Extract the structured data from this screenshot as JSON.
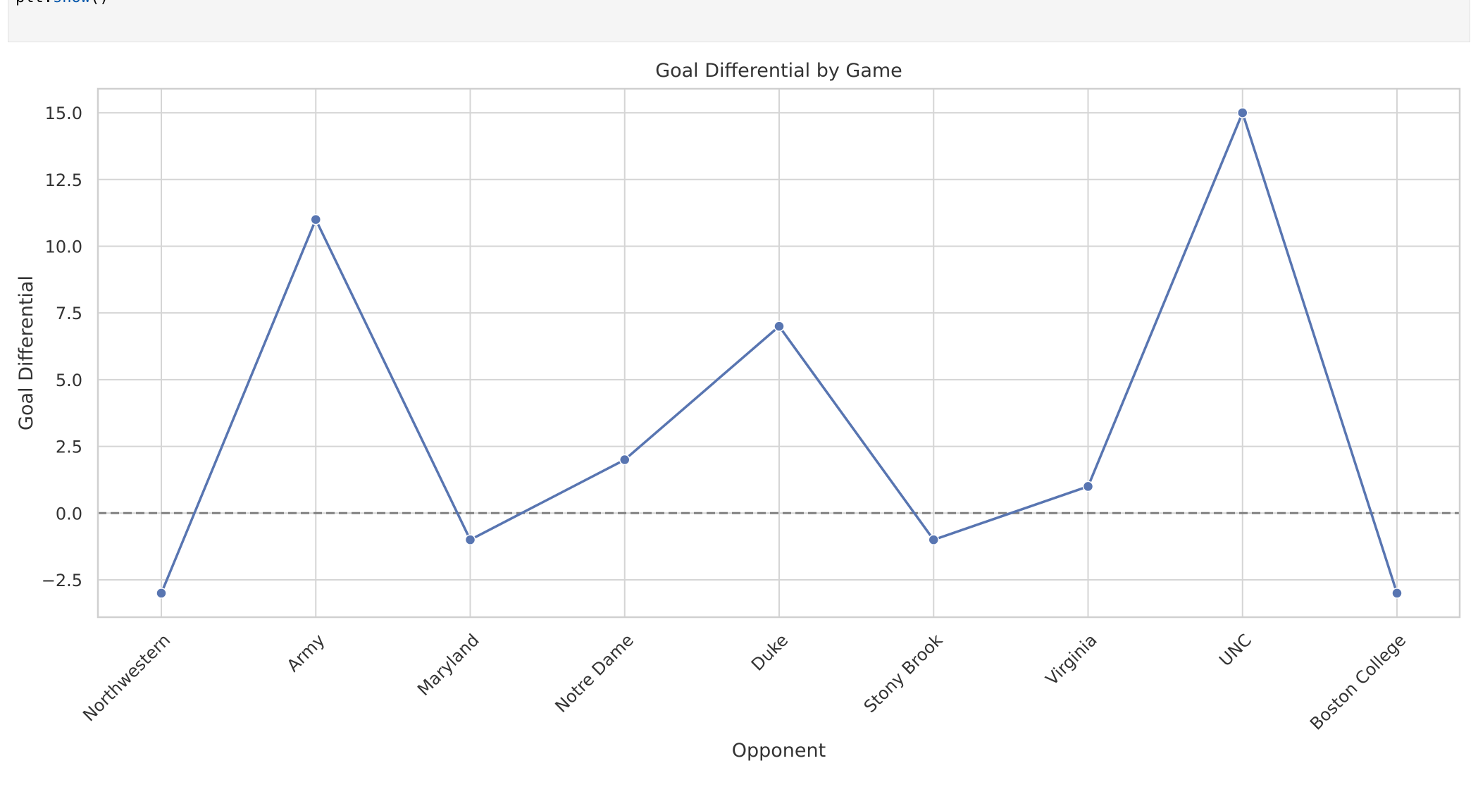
{
  "code_cell": {
    "prefix": "plt.",
    "fn": "show",
    "suffix": "()"
  },
  "chart_data": {
    "type": "line",
    "title": "Goal Differential by Game",
    "xlabel": "Opponent",
    "ylabel": "Goal Differential",
    "categories": [
      "Northwestern",
      "Army",
      "Maryland",
      "Notre Dame",
      "Duke",
      "Stony Brook",
      "Virginia",
      "UNC",
      "Boston College"
    ],
    "series": [
      {
        "values": [
          -3,
          11,
          -1,
          2,
          7,
          -1,
          1,
          15,
          -3
        ],
        "color": "#5875b1",
        "marker": "circle"
      }
    ],
    "ylim": [
      -3.9,
      15.9
    ],
    "yticks": [
      -2.5,
      0.0,
      2.5,
      5.0,
      7.5,
      10.0,
      12.5,
      15.0
    ],
    "ytick_labels": [
      "−2.5",
      "0.0",
      "2.5",
      "5.0",
      "7.5",
      "10.0",
      "12.5",
      "15.0"
    ],
    "reference_line": {
      "y": 0,
      "style": "dashed",
      "color": "#808080"
    },
    "grid": true,
    "xtick_rotation": 45,
    "style": "whitegrid"
  }
}
